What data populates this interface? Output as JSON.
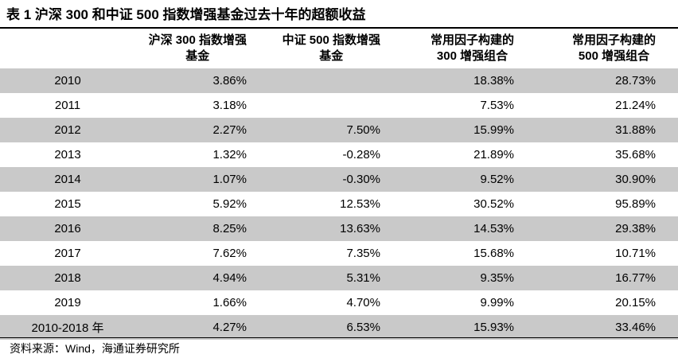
{
  "title": "表 1  沪深 300 和中证 500 指数增强基金过去十年的超额收益",
  "headers": [
    {
      "line1": "",
      "line2": ""
    },
    {
      "line1": "沪深 300 指数增强",
      "line2": "基金"
    },
    {
      "line1": "中证 500 指数增强",
      "line2": "基金"
    },
    {
      "line1": "常用因子构建的",
      "line2": "300 增强组合"
    },
    {
      "line1": "常用因子构建的",
      "line2": "500 增强组合"
    }
  ],
  "rows": [
    {
      "year": "2010",
      "c1": "3.86%",
      "c2": "",
      "c3": "18.38%",
      "c4": "28.73%"
    },
    {
      "year": "2011",
      "c1": "3.18%",
      "c2": "",
      "c3": "7.53%",
      "c4": "21.24%"
    },
    {
      "year": "2012",
      "c1": "2.27%",
      "c2": "7.50%",
      "c3": "15.99%",
      "c4": "31.88%"
    },
    {
      "year": "2013",
      "c1": "1.32%",
      "c2": "-0.28%",
      "c3": "21.89%",
      "c4": "35.68%"
    },
    {
      "year": "2014",
      "c1": "1.07%",
      "c2": "-0.30%",
      "c3": "9.52%",
      "c4": "30.90%"
    },
    {
      "year": "2015",
      "c1": "5.92%",
      "c2": "12.53%",
      "c3": "30.52%",
      "c4": "95.89%"
    },
    {
      "year": "2016",
      "c1": "8.25%",
      "c2": "13.63%",
      "c3": "14.53%",
      "c4": "29.38%"
    },
    {
      "year": "2017",
      "c1": "7.62%",
      "c2": "7.35%",
      "c3": "15.68%",
      "c4": "10.71%"
    },
    {
      "year": "2018",
      "c1": "4.94%",
      "c2": "5.31%",
      "c3": "9.35%",
      "c4": "16.77%"
    },
    {
      "year": "2019",
      "c1": "1.66%",
      "c2": "4.70%",
      "c3": "9.99%",
      "c4": "20.15%"
    },
    {
      "year": "2010-2018 年",
      "c1": "4.27%",
      "c2": "6.53%",
      "c3": "15.93%",
      "c4": "33.46%"
    }
  ],
  "source": "资料来源：Wind，海通证券研究所",
  "colors": {
    "row_shade": "#c9c9c9",
    "rule": "#000000"
  }
}
